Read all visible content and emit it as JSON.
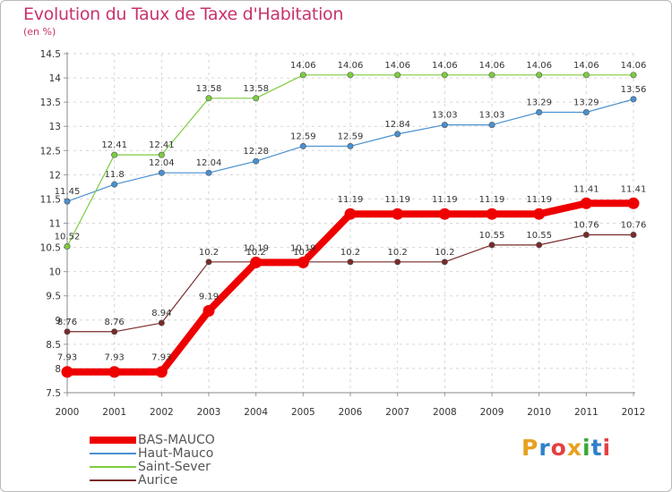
{
  "title": "Evolution du Taux de Taxe d'Habitation",
  "unit_label": "(en %)",
  "logo_text": "Proxiti",
  "logo_colors": [
    "#e8a020",
    "#2f80c8",
    "#e34040",
    "#e8a020",
    "#3aa83a",
    "#2f80c8",
    "#e34040"
  ],
  "chart_data": {
    "type": "line",
    "title": "Evolution du Taux de Taxe d'Habitation",
    "ylabel": "(en %)",
    "xlabel": "",
    "x": [
      "2000",
      "2001",
      "2002",
      "2003",
      "2004",
      "2005",
      "2006",
      "2007",
      "2008",
      "2009",
      "2010",
      "2011",
      "2012"
    ],
    "ylim": [
      7.5,
      14.5
    ],
    "yticks": [
      "7.5",
      "8",
      "8.5",
      "9",
      "9.5",
      "10",
      "10.5",
      "11",
      "11.5",
      "12",
      "12.5",
      "13",
      "13.5",
      "14",
      "14.5"
    ],
    "grid": "horizontal dashed",
    "legend_position": "bottom-left",
    "series": [
      {
        "name": "BAS-MAUCO",
        "color": "#ee0000",
        "style": "thick",
        "values": [
          7.93,
          7.93,
          7.93,
          9.19,
          10.19,
          10.19,
          11.19,
          11.19,
          11.19,
          11.19,
          11.19,
          11.41,
          11.41
        ],
        "labels": [
          "7.93",
          "7.93",
          "7.93",
          "9.19",
          "10.19",
          "10.19",
          "11.19",
          "11.19",
          "11.19",
          "11.19",
          "11.19",
          "11.41",
          "11.41"
        ]
      },
      {
        "name": "Haut-Mauco",
        "color": "#4a90d0",
        "style": "thin",
        "values": [
          11.45,
          11.8,
          12.04,
          12.04,
          12.28,
          12.59,
          12.59,
          12.84,
          13.03,
          13.03,
          13.29,
          13.29,
          13.56
        ],
        "labels": [
          "11.45",
          "11.8",
          "12.04",
          "12.04",
          "12.28",
          "12.59",
          "12.59",
          "12.84",
          "13.03",
          "13.03",
          "13.29",
          "13.29",
          "13.56"
        ]
      },
      {
        "name": "Saint-Sever",
        "color": "#7ccc40",
        "style": "thin",
        "values": [
          10.52,
          12.41,
          12.41,
          13.58,
          13.58,
          14.06,
          14.06,
          14.06,
          14.06,
          14.06,
          14.06,
          14.06,
          14.06
        ],
        "labels": [
          "10.52",
          "12.41",
          "12.41",
          "13.58",
          "13.58",
          "14.06",
          "14.06",
          "14.06",
          "14.06",
          "14.06",
          "14.06",
          "14.06",
          "14.06"
        ]
      },
      {
        "name": "Aurice",
        "color": "#7a2a2a",
        "style": "thin",
        "values": [
          8.76,
          8.76,
          8.94,
          10.2,
          10.2,
          10.2,
          10.2,
          10.2,
          10.2,
          10.55,
          10.55,
          10.76,
          10.76
        ],
        "labels": [
          "8.76",
          "8.76",
          "8.94",
          "10.2",
          "10.2",
          "10.2",
          "10.2",
          "10.2",
          "10.2",
          "10.55",
          "10.55",
          "10.76",
          "10.76"
        ]
      }
    ]
  }
}
